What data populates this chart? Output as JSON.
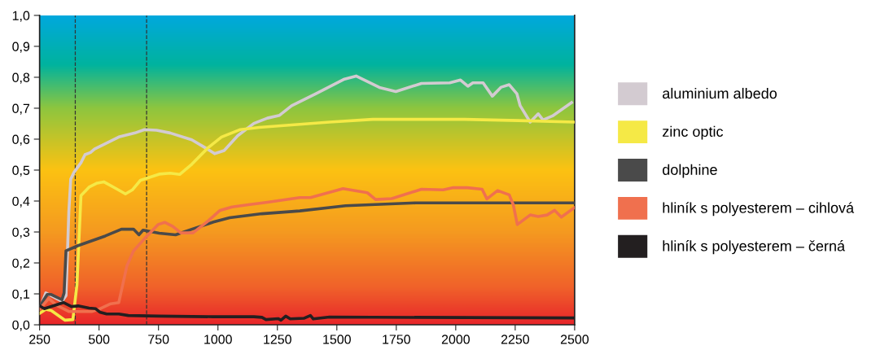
{
  "chart_data": {
    "type": "line",
    "xlim": [
      250,
      2500
    ],
    "xticks": [
      250,
      500,
      750,
      1000,
      1250,
      1500,
      1750,
      2000,
      2250,
      2500
    ],
    "ylim": [
      0,
      1.0
    ],
    "yticks": [
      {
        "value": 0,
        "label": "0,0"
      },
      {
        "value": 0.1,
        "label": "0,1"
      },
      {
        "value": 0.2,
        "label": "0,2"
      },
      {
        "value": 0.3,
        "label": "0,3"
      },
      {
        "value": 0.4,
        "label": "0,4"
      },
      {
        "value": 0.5,
        "label": "0,5"
      },
      {
        "value": 0.6,
        "label": "0,6"
      },
      {
        "value": 0.7,
        "label": "0,7"
      },
      {
        "value": 0.8,
        "label": "0,8"
      },
      {
        "value": 0.9,
        "label": "0,9"
      },
      {
        "value": 1.0,
        "label": "1,0"
      }
    ],
    "grid": false,
    "legend": "right",
    "marker": "none",
    "line_style": "solid",
    "ref_lines": [
      {
        "axis": "x",
        "value": 400,
        "color": "#333333",
        "line_style": "dashed"
      },
      {
        "axis": "x",
        "value": 700,
        "color": "#333333",
        "line_style": "dashed"
      }
    ],
    "series": [
      {
        "name": "aluminium albedo",
        "color": "#d3cbd1",
        "x": [
          256,
          276,
          299,
          344,
          361,
          373,
          381,
          395,
          424,
          441,
          464,
          481,
          526,
          583,
          651,
          691,
          742,
          799,
          890,
          947,
          986,
          1026,
          1083,
          1151,
          1208,
          1259,
          1310,
          1412,
          1532,
          1581,
          1679,
          1748,
          1856,
          1975,
          2020,
          2051,
          2072,
          2115,
          2154,
          2191,
          2225,
          2257,
          2271,
          2313,
          2347,
          2367,
          2407,
          2487
        ],
        "values": [
          0.063,
          0.103,
          0.094,
          0.076,
          0.094,
          0.366,
          0.471,
          0.493,
          0.524,
          0.55,
          0.557,
          0.568,
          0.585,
          0.607,
          0.62,
          0.631,
          0.629,
          0.62,
          0.598,
          0.572,
          0.553,
          0.563,
          0.611,
          0.651,
          0.668,
          0.677,
          0.708,
          0.747,
          0.794,
          0.804,
          0.767,
          0.754,
          0.78,
          0.782,
          0.791,
          0.771,
          0.782,
          0.782,
          0.739,
          0.768,
          0.776,
          0.747,
          0.708,
          0.655,
          0.682,
          0.662,
          0.675,
          0.718
        ]
      },
      {
        "name": "zinc optic",
        "color": "#f5e946",
        "x": [
          250,
          276,
          299,
          356,
          390,
          407,
          424,
          458,
          492,
          520,
          572,
          611,
          640,
          674,
          753,
          799,
          839,
          890,
          958,
          1015,
          1094,
          1174,
          1344,
          1469,
          1651,
          2037,
          2264,
          2500
        ],
        "values": [
          0.037,
          0.05,
          0.046,
          0.015,
          0.017,
          0.129,
          0.418,
          0.445,
          0.458,
          0.462,
          0.44,
          0.423,
          0.436,
          0.467,
          0.487,
          0.49,
          0.486,
          0.519,
          0.572,
          0.607,
          0.631,
          0.638,
          0.648,
          0.655,
          0.664,
          0.664,
          0.66,
          0.655
        ]
      },
      {
        "name": "dolphine",
        "color": "#4a4a4a",
        "x": [
          250,
          282,
          299,
          344,
          353,
          361,
          412,
          526,
          594,
          645,
          668,
          685,
          753,
          822,
          890,
          981,
          1049,
          1185,
          1344,
          1537,
          1832,
          2500
        ],
        "values": [
          0.059,
          0.098,
          0.098,
          0.081,
          0.103,
          0.239,
          0.256,
          0.287,
          0.309,
          0.309,
          0.291,
          0.306,
          0.296,
          0.291,
          0.309,
          0.332,
          0.346,
          0.359,
          0.368,
          0.385,
          0.394,
          0.394
        ]
      },
      {
        "name": "hliník s polyesterem – cihlová",
        "color": "#f0704e",
        "x": [
          250,
          288,
          322,
          356,
          373,
          469,
          498,
          549,
          583,
          617,
          645,
          691,
          748,
          776,
          810,
          844,
          895,
          958,
          1009,
          1060,
          1128,
          1208,
          1344,
          1389,
          1526,
          1628,
          1663,
          1731,
          1856,
          1947,
          1986,
          2049,
          2111,
          2131,
          2176,
          2225,
          2242,
          2259,
          2313,
          2347,
          2384,
          2416,
          2444,
          2500
        ],
        "values": [
          0.05,
          0.085,
          0.063,
          0.05,
          0.043,
          0.043,
          0.05,
          0.068,
          0.072,
          0.19,
          0.239,
          0.278,
          0.324,
          0.331,
          0.318,
          0.297,
          0.297,
          0.335,
          0.37,
          0.381,
          0.388,
          0.396,
          0.411,
          0.411,
          0.44,
          0.427,
          0.405,
          0.408,
          0.438,
          0.436,
          0.443,
          0.443,
          0.438,
          0.407,
          0.434,
          0.42,
          0.388,
          0.324,
          0.355,
          0.35,
          0.355,
          0.37,
          0.348,
          0.379
        ]
      },
      {
        "name": "hliník s polyesterem – černá",
        "color": "#231f20",
        "x": [
          250,
          270,
          350,
          384,
          412,
          458,
          486,
          503,
          532,
          583,
          623,
          753,
          981,
          1151,
          1185,
          1202,
          1253,
          1265,
          1285,
          1304,
          1361,
          1389,
          1401,
          1469,
          2500
        ],
        "values": [
          0.061,
          0.052,
          0.072,
          0.059,
          0.061,
          0.054,
          0.052,
          0.041,
          0.035,
          0.035,
          0.03,
          0.028,
          0.026,
          0.026,
          0.024,
          0.017,
          0.02,
          0.015,
          0.028,
          0.019,
          0.021,
          0.03,
          0.019,
          0.025,
          0.022
        ]
      }
    ]
  }
}
